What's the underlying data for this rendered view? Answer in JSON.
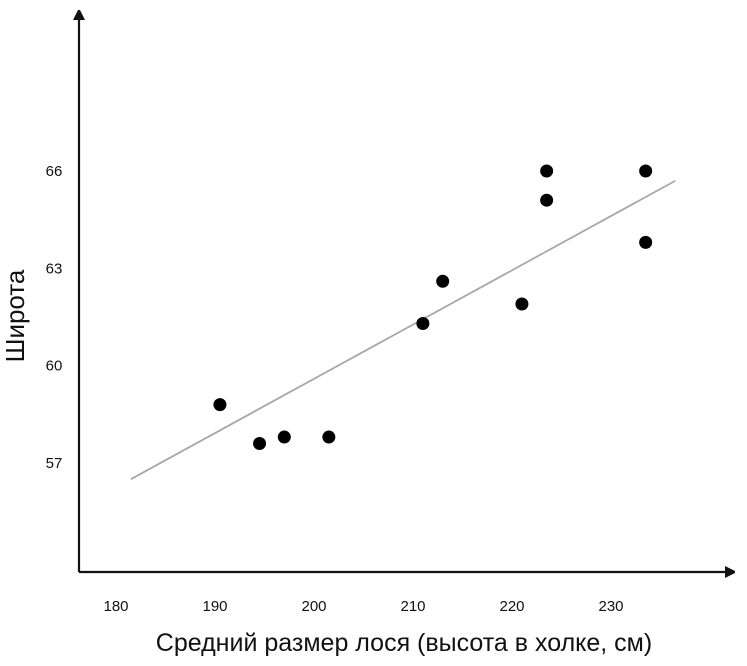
{
  "chart_data": {
    "type": "scatter",
    "title": "",
    "xlabel": "Средний размер лося (высота в холке, см)",
    "ylabel": "Широта",
    "xlim": [
      176,
      240
    ],
    "ylim": [
      53.5,
      69.5
    ],
    "x_ticks": [
      180,
      190,
      200,
      210,
      220,
      230
    ],
    "x_tick_labels": [
      "180",
      "190",
      "200",
      "210",
      "220",
      "230"
    ],
    "y_ticks": [
      57,
      60,
      63,
      66
    ],
    "y_tick_labels": [
      "57",
      "60",
      "63",
      "66"
    ],
    "grid": false,
    "legend": "none",
    "series": [
      {
        "x": [
          190.5,
          194.5,
          197,
          201.5,
          211,
          213,
          221,
          223.5,
          223.5,
          233.5,
          233.5
        ],
        "y": [
          58.8,
          57.6,
          57.8,
          57.8,
          61.3,
          62.6,
          61.9,
          66.0,
          65.1,
          66.0,
          63.8
        ]
      }
    ],
    "trendline": {
      "x": [
        181.5,
        236.5
      ],
      "y": [
        56.5,
        65.7
      ]
    },
    "colors": {
      "points": "#000000",
      "trendline": "#a8a8a8",
      "axes": "#111111"
    }
  }
}
